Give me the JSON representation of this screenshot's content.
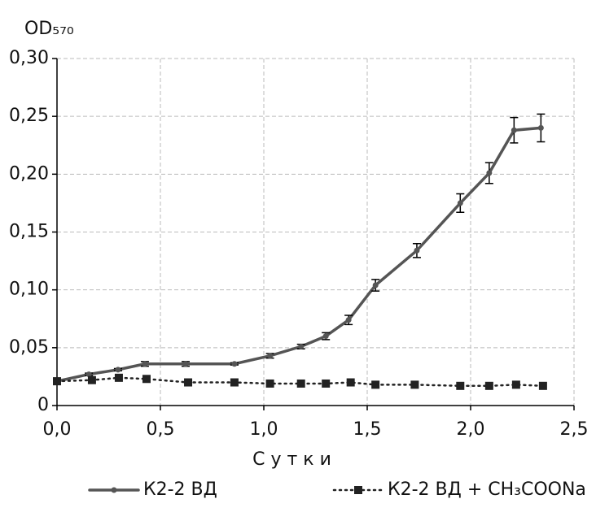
{
  "chart_data": {
    "type": "line",
    "ylabel": "OD₅₇₀",
    "xlabel": "Сутки",
    "xlim": [
      0,
      2.5
    ],
    "xticks": [
      {
        "value": 0,
        "label": "0,0"
      },
      {
        "value": 0.5,
        "label": "0,5"
      },
      {
        "value": 1,
        "label": "1,0"
      },
      {
        "value": 1.5,
        "label": "1,5"
      },
      {
        "value": 2,
        "label": "2,0"
      },
      {
        "value": 2.5,
        "label": "2,5"
      }
    ],
    "ylim": [
      0,
      0.3
    ],
    "yticks": [
      0,
      {
        "value": 0.05,
        "label": "0,05"
      },
      {
        "value": 0.1,
        "label": "0,10"
      },
      {
        "value": 0.15,
        "label": "0,15"
      },
      {
        "value": 0.2,
        "label": "0,20"
      },
      {
        "value": 0.25,
        "label": "0,25"
      },
      {
        "value": 0.3,
        "label": "0,30"
      }
    ],
    "grid": true,
    "legend": "bottom",
    "series": [
      {
        "name": "К2-2 ВД",
        "color": "#555555",
        "marker": "circle",
        "linestyle": "solid",
        "x": [
          0,
          0.154,
          0.295,
          0.425,
          0.622,
          0.858,
          1.03,
          1.18,
          1.3,
          1.41,
          1.54,
          1.74,
          1.95,
          2.09,
          2.21,
          2.34
        ],
        "values": [
          0.021,
          0.027,
          0.031,
          0.036,
          0.036,
          0.036,
          0.043,
          0.051,
          0.06,
          0.074,
          0.104,
          0.134,
          0.175,
          0.201,
          0.238,
          0.24
        ],
        "errors": [
          0.001,
          0.001,
          0.001,
          0.002,
          0.002,
          0.001,
          0.002,
          0.002,
          0.003,
          0.004,
          0.005,
          0.006,
          0.008,
          0.009,
          0.011,
          0.012
        ]
      },
      {
        "name": "К2-2 ВД + CH₃COONa",
        "color": "#222222",
        "marker": "square",
        "linestyle": "dotted",
        "x": [
          0,
          0.169,
          0.299,
          0.433,
          0.634,
          0.858,
          1.03,
          1.18,
          1.3,
          1.42,
          1.54,
          1.73,
          1.95,
          2.09,
          2.22,
          2.35
        ],
        "values": [
          0.021,
          0.022,
          0.024,
          0.023,
          0.02,
          0.02,
          0.019,
          0.019,
          0.019,
          0.02,
          0.018,
          0.018,
          0.017,
          0.017,
          0.018,
          0.017
        ]
      }
    ]
  }
}
